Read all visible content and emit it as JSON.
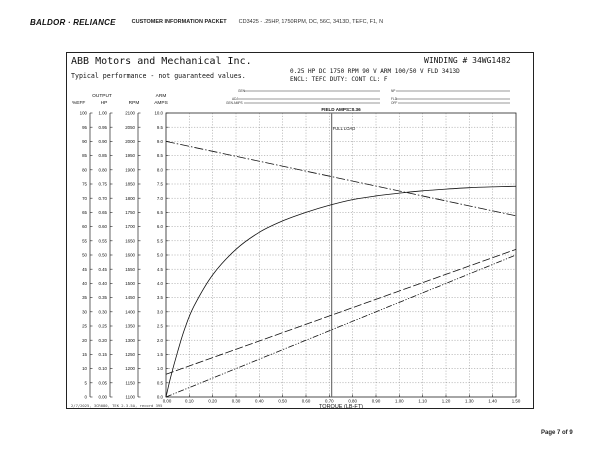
{
  "header": {
    "brand": "BALDOR · RELIANCE",
    "packet": "CUSTOMER INFORMATION PACKET",
    "description": "CD3425 - .25HP, 1750RPM, DC, 56C, 3413D, TEFC, F1, N"
  },
  "sheet": {
    "company": "ABB Motors and Mechanical Inc.",
    "winding": "WINDING # 34WG1482",
    "typical": "Typical performance - not guaranteed values.",
    "rating_line": "0.25 HP  DC  1750 RPM  90 V ARM  100/50 V FLD  3413D",
    "encl_line": "ENCL: TEFC  DUTY: CONT  CL: F",
    "blank_fields": [
      "GEN",
      "NP",
      "ADJ",
      "GEN AMPS",
      "FLD",
      "OFF"
    ],
    "footnote": "2/7/2025, 3CR080, TEK 2.3.5A, record 395",
    "page": "Page 7 of 9"
  },
  "chart_data": {
    "type": "line",
    "title": "",
    "xlabel": "TORQUE (LB-FT)",
    "xlim": [
      0,
      1.5
    ],
    "x_ticks": [
      "0.00",
      "0.10",
      "0.20",
      "0.30",
      "0.40",
      "0.50",
      "0.60",
      "0.70",
      "0.80",
      "0.90",
      "1.00",
      "1.10",
      "1.20",
      "1.30",
      "1.40",
      "1.50"
    ],
    "axis_headers": {
      "eff": "%EFF",
      "hp_top": "OUTPUT",
      "hp": "HP",
      "rpm": "RPM",
      "amps_top": "ARM",
      "amps": "AMPS"
    },
    "eff_ticks": [
      "100",
      "95",
      "90",
      "85",
      "80",
      "75",
      "70",
      "65",
      "60",
      "55",
      "50",
      "45",
      "40",
      "35",
      "30",
      "25",
      "20",
      "15",
      "10",
      "5",
      "0"
    ],
    "hp_ticks": [
      "1.00",
      "0.95",
      "0.90",
      "0.85",
      "0.80",
      "0.75",
      "0.70",
      "0.65",
      "0.60",
      "0.55",
      "0.50",
      "0.45",
      "0.40",
      "0.35",
      "0.30",
      "0.25",
      "0.20",
      "0.15",
      "0.10",
      "0.05",
      "0.00"
    ],
    "rpm_ticks": [
      "2100",
      "2050",
      "2000",
      "1950",
      "1900",
      "1850",
      "1800",
      "1750",
      "1700",
      "1650",
      "1600",
      "1550",
      "1500",
      "1450",
      "1400",
      "1350",
      "1300",
      "1250",
      "1200",
      "1150",
      "1100"
    ],
    "amps_ticks": [
      "10.0",
      "9.5",
      "9.0",
      "8.5",
      "8.0",
      "7.5",
      "7.0",
      "6.5",
      "6.0",
      "5.5",
      "5.0",
      "4.5",
      "4.0",
      "3.5",
      "3.0",
      "2.5",
      "2.0",
      "1.5",
      "1.0",
      "0.5",
      "0.0"
    ],
    "grid": true,
    "annotations": {
      "field_amps": "FIELD AMPS=0.36",
      "full_load_label": "FULL LOAD",
      "full_load_torque": 0.71
    },
    "series": [
      {
        "key": "efficiency",
        "style": "solid",
        "axis": "eff",
        "x": [
          0.0,
          0.02,
          0.05,
          0.08,
          0.12,
          0.2,
          0.3,
          0.4,
          0.5,
          0.6,
          0.7,
          0.8,
          0.9,
          1.0,
          1.1,
          1.2,
          1.3,
          1.4,
          1.5
        ],
        "y": [
          0,
          7,
          16,
          24,
          32,
          43,
          52,
          58,
          62,
          65,
          67.5,
          69.5,
          70.8,
          71.8,
          72.6,
          73.2,
          73.7,
          74.0,
          74.2
        ]
      },
      {
        "key": "speed",
        "style": "dash-dot",
        "axis": "rpm",
        "x": [
          0.0,
          1.5
        ],
        "y": [
          2000,
          1738
        ]
      },
      {
        "key": "output_hp",
        "style": "dash-dot-dot",
        "axis": "hp",
        "x": [
          0.0,
          1.5
        ],
        "y": [
          0.0,
          0.5
        ]
      },
      {
        "key": "armature_amps",
        "style": "long-dash",
        "axis": "amps",
        "x": [
          0.0,
          1.5
        ],
        "y": [
          0.8,
          5.2
        ]
      }
    ]
  }
}
